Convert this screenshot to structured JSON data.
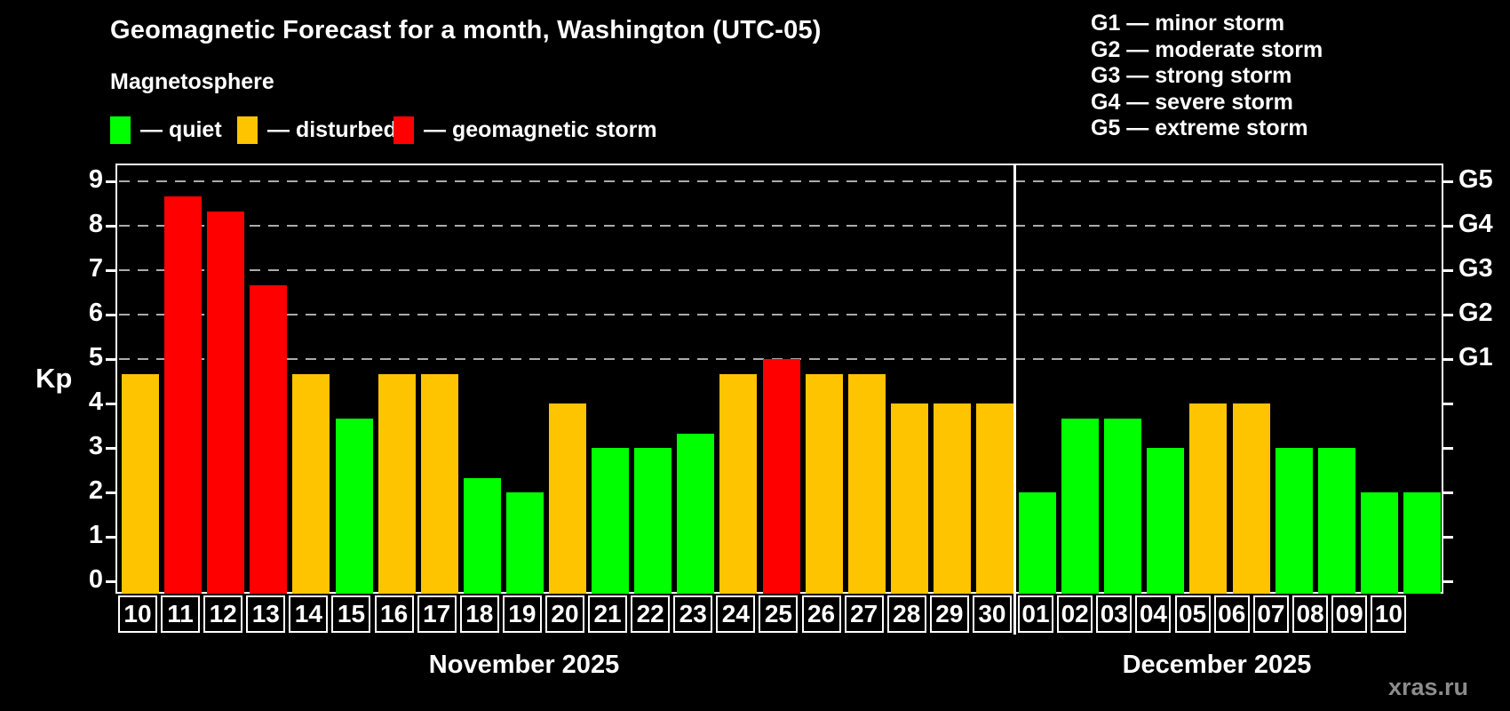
{
  "title": "Geomagnetic Forecast for a month, Washington (UTC-05)",
  "subtitle": "Magnetosphere",
  "legend": {
    "quiet": {
      "label": "— quiet",
      "color": "#00ff00"
    },
    "disturbed": {
      "label": "— disturbed",
      "color": "#ffc400"
    },
    "storm": {
      "label": "— geomagnetic storm",
      "color": "#ff0000"
    }
  },
  "g_scale_legend": [
    "G1 — minor storm",
    "G2 — moderate storm",
    "G3 — strong storm",
    "G4 — severe storm",
    "G5 — extreme storm"
  ],
  "watermark": "xras.ru",
  "chart_data": {
    "type": "bar",
    "ylabel": "Kp",
    "ylim": [
      0,
      9
    ],
    "yticks": [
      0,
      1,
      2,
      3,
      4,
      5,
      6,
      7,
      8,
      9
    ],
    "gridlines_at_kp": [
      5,
      6,
      7,
      8,
      9
    ],
    "grid_style": "dashed horizontal lines at storm levels",
    "legend_position": "top",
    "right_axis_labels": [
      {
        "label": "G1",
        "kp": 5
      },
      {
        "label": "G2",
        "kp": 6
      },
      {
        "label": "G3",
        "kp": 7
      },
      {
        "label": "G4",
        "kp": 8
      },
      {
        "label": "G5",
        "kp": 9
      }
    ],
    "months": [
      {
        "label": "November 2025",
        "days": [
          {
            "day": "10",
            "kp": 4.67,
            "status": "disturbed"
          },
          {
            "day": "11",
            "kp": 8.67,
            "status": "storm"
          },
          {
            "day": "12",
            "kp": 8.33,
            "status": "storm"
          },
          {
            "day": "13",
            "kp": 6.67,
            "status": "storm"
          },
          {
            "day": "14",
            "kp": 4.67,
            "status": "disturbed"
          },
          {
            "day": "15",
            "kp": 3.67,
            "status": "quiet"
          },
          {
            "day": "16",
            "kp": 4.67,
            "status": "disturbed"
          },
          {
            "day": "17",
            "kp": 4.67,
            "status": "disturbed"
          },
          {
            "day": "18",
            "kp": 2.33,
            "status": "quiet"
          },
          {
            "day": "19",
            "kp": 2.0,
            "status": "quiet"
          },
          {
            "day": "20",
            "kp": 4.0,
            "status": "disturbed"
          },
          {
            "day": "21",
            "kp": 3.0,
            "status": "quiet"
          },
          {
            "day": "22",
            "kp": 3.0,
            "status": "quiet"
          },
          {
            "day": "23",
            "kp": 3.33,
            "status": "quiet"
          },
          {
            "day": "24",
            "kp": 4.67,
            "status": "disturbed"
          },
          {
            "day": "25",
            "kp": 5.0,
            "status": "storm"
          },
          {
            "day": "26",
            "kp": 4.67,
            "status": "disturbed"
          },
          {
            "day": "27",
            "kp": 4.67,
            "status": "disturbed"
          },
          {
            "day": "28",
            "kp": 4.0,
            "status": "disturbed"
          },
          {
            "day": "29",
            "kp": 4.0,
            "status": "disturbed"
          },
          {
            "day": "30",
            "kp": 4.0,
            "status": "disturbed"
          }
        ]
      },
      {
        "label": "December 2025",
        "days": [
          {
            "day": "01",
            "kp": 2.0,
            "status": "quiet"
          },
          {
            "day": "02",
            "kp": 3.67,
            "status": "quiet"
          },
          {
            "day": "03",
            "kp": 3.67,
            "status": "quiet"
          },
          {
            "day": "04",
            "kp": 3.0,
            "status": "quiet"
          },
          {
            "day": "05",
            "kp": 4.0,
            "status": "disturbed"
          },
          {
            "day": "06",
            "kp": 4.0,
            "status": "disturbed"
          },
          {
            "day": "07",
            "kp": 3.0,
            "status": "quiet"
          },
          {
            "day": "08",
            "kp": 3.0,
            "status": "quiet"
          },
          {
            "day": "09",
            "kp": 2.0,
            "status": "quiet"
          },
          {
            "day": "10",
            "kp": 2.0,
            "status": "quiet"
          }
        ]
      }
    ]
  }
}
